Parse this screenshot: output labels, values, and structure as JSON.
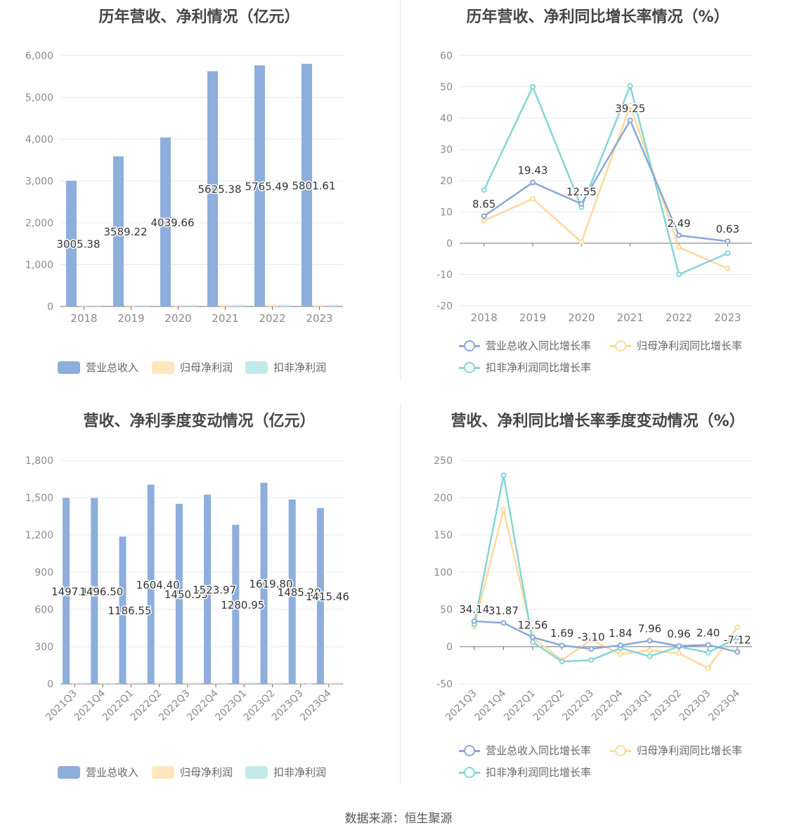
{
  "source_text": "数据来源：恒生聚源",
  "chart_data": [
    {
      "id": "annual-revenue-profit",
      "type": "bar",
      "title": "历年营收、净利情况（亿元）",
      "categories": [
        "2018",
        "2019",
        "2020",
        "2021",
        "2022",
        "2023"
      ],
      "ylim": [
        0,
        6000
      ],
      "yticks": [
        0,
        1000,
        2000,
        3000,
        4000,
        5000,
        6000
      ],
      "ytick_labels": [
        "0",
        "1,000",
        "2,000",
        "3,000",
        "4,000",
        "5,000",
        "6,000"
      ],
      "label_series": 0,
      "legend_position": "bottom",
      "grid": true,
      "series": [
        {
          "name": "营业总收入",
          "color": "#8eaedc",
          "values": [
            3005.38,
            3589.22,
            4039.66,
            5625.38,
            5765.49,
            5801.61
          ],
          "labels": [
            "3005.38",
            "3589.22",
            "4039.66",
            "5625.38",
            "5765.49",
            "5801.61"
          ]
        },
        {
          "name": "归母净利润",
          "color": "#ffe6c0",
          "values": [
            30,
            33,
            35,
            45,
            45,
            42
          ]
        },
        {
          "name": "扣非净利润",
          "color": "#c2eaeb",
          "values": [
            26,
            29,
            31,
            40,
            40,
            38
          ]
        }
      ]
    },
    {
      "id": "annual-growth-rate",
      "type": "line",
      "title": "历年营收、净利同比增长率情况（%）",
      "categories": [
        "2018",
        "2019",
        "2020",
        "2021",
        "2022",
        "2023"
      ],
      "ylim": [
        -20,
        60
      ],
      "yticks": [
        -20,
        -10,
        0,
        10,
        20,
        30,
        40,
        50,
        60
      ],
      "ytick_labels": [
        "-20",
        "-10",
        "0",
        "10",
        "20",
        "30",
        "40",
        "50",
        "60"
      ],
      "label_series": 0,
      "legend_position": "bottom",
      "grid": true,
      "series": [
        {
          "name": "营业总收入同比增长率",
          "color": "#8aa8d8",
          "values": [
            8.65,
            19.43,
            12.55,
            39.25,
            2.49,
            0.63
          ],
          "labels": [
            "8.65",
            "19.43",
            "12.55",
            "39.25",
            "2.49",
            "0.63"
          ]
        },
        {
          "name": "归母净利润同比增长率",
          "color": "#ffd99b",
          "values": [
            7.2,
            14.2,
            0.4,
            44.0,
            -1.3,
            -8.1
          ]
        },
        {
          "name": "扣非净利润同比增长率",
          "color": "#86d5d6",
          "values": [
            17.0,
            50.0,
            11.5,
            50.3,
            -10.0,
            -3.2
          ]
        }
      ]
    },
    {
      "id": "quarterly-revenue-profit",
      "type": "bar",
      "title": "营收、净利季度变动情况（亿元）",
      "categories": [
        "2021Q3",
        "2021Q4",
        "2022Q1",
        "2022Q2",
        "2022Q3",
        "2022Q4",
        "2023Q1",
        "2023Q2",
        "2023Q3",
        "2023Q4"
      ],
      "ylim": [
        0,
        1800
      ],
      "yticks": [
        0,
        300,
        600,
        900,
        1200,
        1500,
        1800
      ],
      "ytick_labels": [
        "0",
        "300",
        "600",
        "900",
        "1,200",
        "1,500",
        "1,800"
      ],
      "label_series": 0,
      "legend_position": "bottom",
      "grid": true,
      "series": [
        {
          "name": "营业总收入",
          "color": "#8eaedc",
          "values": [
            1497.14,
            1496.5,
            1186.55,
            1604.4,
            1450.55,
            1523.97,
            1280.95,
            1619.8,
            1485.2,
            1415.46
          ],
          "labels": [
            "1497.14",
            "1496.50",
            "1186.55",
            "1604.40",
            "1450.55",
            "1523.97",
            "1280.95",
            "1619.80",
            "1485.20",
            "1415.46"
          ]
        },
        {
          "name": "归母净利润",
          "color": "#ffe6c0",
          "values": [
            10,
            9,
            12,
            11,
            10,
            9,
            12,
            11,
            8,
            10
          ]
        },
        {
          "name": "扣非净利润",
          "color": "#c2eaeb",
          "values": [
            9,
            8,
            11,
            10,
            9,
            8,
            11,
            10,
            7,
            9
          ]
        }
      ]
    },
    {
      "id": "quarterly-growth-rate",
      "type": "line",
      "title": "营收、净利同比增长率季度变动情况（%）",
      "categories": [
        "2021Q3",
        "2021Q4",
        "2022Q1",
        "2022Q2",
        "2022Q3",
        "2022Q4",
        "2023Q1",
        "2023Q2",
        "2023Q3",
        "2023Q4"
      ],
      "ylim": [
        -50,
        250
      ],
      "yticks": [
        -50,
        0,
        50,
        100,
        150,
        200,
        250
      ],
      "ytick_labels": [
        "-50",
        "0",
        "50",
        "100",
        "150",
        "200",
        "250"
      ],
      "label_series": 0,
      "legend_position": "bottom",
      "grid": true,
      "series": [
        {
          "name": "营业总收入同比增长率",
          "color": "#8aa8d8",
          "values": [
            34.14,
            31.87,
            12.56,
            1.69,
            -3.1,
            1.84,
            7.96,
            0.96,
            2.4,
            -7.12
          ],
          "labels": [
            "34.14",
            "31.87",
            "12.56",
            "1.69",
            "-3.10",
            "1.84",
            "7.96",
            "0.96",
            "2.40",
            "-7.12"
          ]
        },
        {
          "name": "归母净利润同比增长率",
          "color": "#ffd99b",
          "values": [
            27,
            184,
            12,
            -18,
            9,
            -10,
            -5,
            -9,
            -29,
            26
          ]
        },
        {
          "name": "扣非净利润同比增长率",
          "color": "#86d5d6",
          "values": [
            30,
            230,
            6,
            -20,
            -18,
            -2,
            -13,
            0,
            -8,
            12
          ]
        }
      ]
    }
  ]
}
